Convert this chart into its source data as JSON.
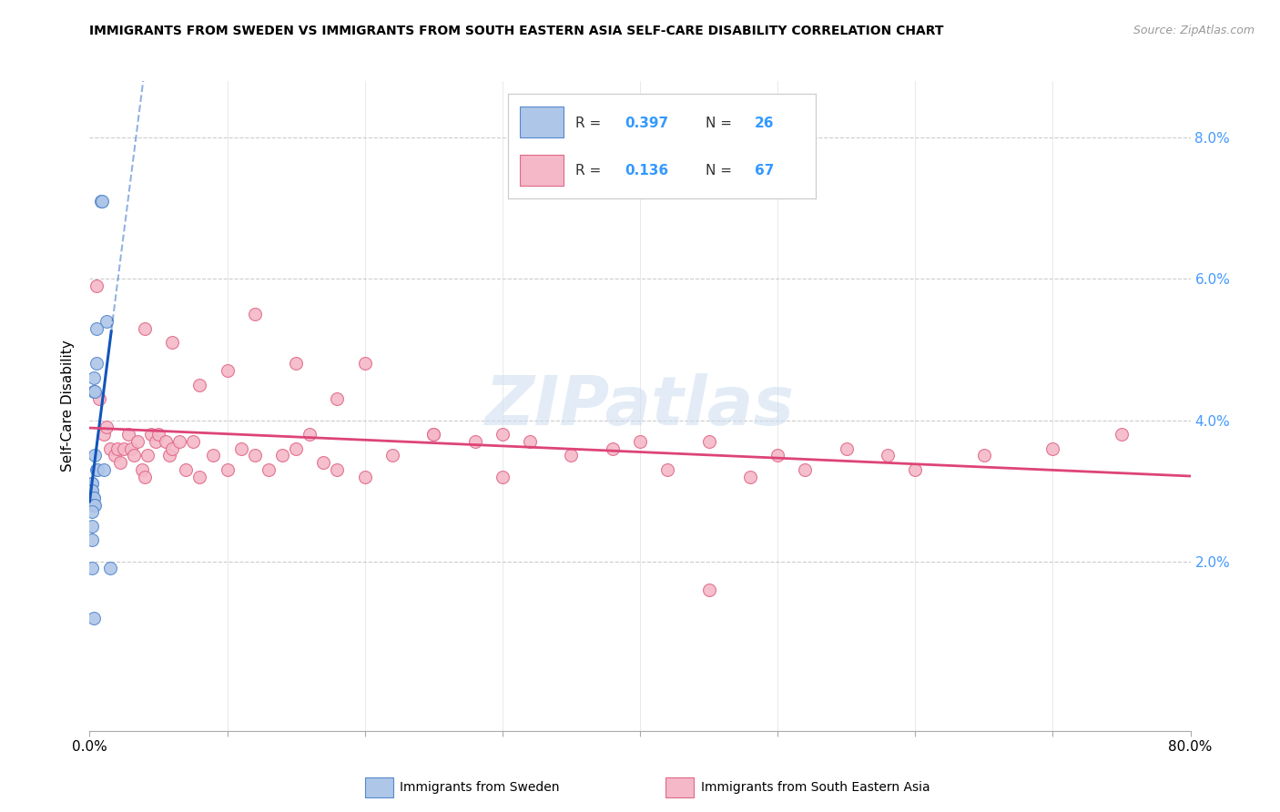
{
  "title": "IMMIGRANTS FROM SWEDEN VS IMMIGRANTS FROM SOUTH EASTERN ASIA SELF-CARE DISABILITY CORRELATION CHART",
  "source": "Source: ZipAtlas.com",
  "ylabel": "Self-Care Disability",
  "r_sweden": 0.397,
  "n_sweden": 26,
  "r_sea": 0.136,
  "n_sea": 67,
  "xmin": 0.0,
  "xmax": 0.8,
  "ymin": 0.0,
  "ymax": 0.088,
  "watermark": "ZIPatlas",
  "sweden_fill": "#aec6e8",
  "sweden_edge": "#5588cc",
  "sea_fill": "#f4b8c8",
  "sea_edge": "#e06888",
  "sweden_line_color": "#1155bb",
  "sea_line_color": "#dd4477",
  "sweden_scatter_x": [
    0.008,
    0.009,
    0.012,
    0.005,
    0.005,
    0.003,
    0.003,
    0.004,
    0.004,
    0.005,
    0.006,
    0.01,
    0.002,
    0.002,
    0.002,
    0.002,
    0.003,
    0.003,
    0.003,
    0.004,
    0.002,
    0.002,
    0.002,
    0.002,
    0.015,
    0.003
  ],
  "sweden_scatter_y": [
    0.071,
    0.071,
    0.054,
    0.053,
    0.048,
    0.046,
    0.044,
    0.044,
    0.035,
    0.033,
    0.033,
    0.033,
    0.031,
    0.031,
    0.03,
    0.03,
    0.029,
    0.029,
    0.028,
    0.028,
    0.027,
    0.025,
    0.023,
    0.019,
    0.019,
    0.012
  ],
  "sea_scatter_x": [
    0.005,
    0.007,
    0.01,
    0.012,
    0.015,
    0.018,
    0.02,
    0.022,
    0.025,
    0.028,
    0.03,
    0.032,
    0.035,
    0.038,
    0.04,
    0.042,
    0.045,
    0.048,
    0.05,
    0.055,
    0.058,
    0.06,
    0.065,
    0.07,
    0.075,
    0.08,
    0.09,
    0.1,
    0.11,
    0.12,
    0.13,
    0.14,
    0.15,
    0.16,
    0.17,
    0.18,
    0.2,
    0.22,
    0.25,
    0.28,
    0.3,
    0.32,
    0.35,
    0.38,
    0.4,
    0.42,
    0.45,
    0.48,
    0.5,
    0.52,
    0.55,
    0.58,
    0.6,
    0.65,
    0.7,
    0.75,
    0.04,
    0.06,
    0.08,
    0.1,
    0.12,
    0.15,
    0.18,
    0.2,
    0.25,
    0.3,
    0.45
  ],
  "sea_scatter_y": [
    0.059,
    0.043,
    0.038,
    0.039,
    0.036,
    0.035,
    0.036,
    0.034,
    0.036,
    0.038,
    0.036,
    0.035,
    0.037,
    0.033,
    0.032,
    0.035,
    0.038,
    0.037,
    0.038,
    0.037,
    0.035,
    0.036,
    0.037,
    0.033,
    0.037,
    0.032,
    0.035,
    0.033,
    0.036,
    0.035,
    0.033,
    0.035,
    0.036,
    0.038,
    0.034,
    0.033,
    0.032,
    0.035,
    0.038,
    0.037,
    0.038,
    0.037,
    0.035,
    0.036,
    0.037,
    0.033,
    0.037,
    0.032,
    0.035,
    0.033,
    0.036,
    0.035,
    0.033,
    0.035,
    0.036,
    0.038,
    0.053,
    0.051,
    0.045,
    0.047,
    0.055,
    0.048,
    0.043,
    0.048,
    0.038,
    0.032,
    0.016
  ]
}
